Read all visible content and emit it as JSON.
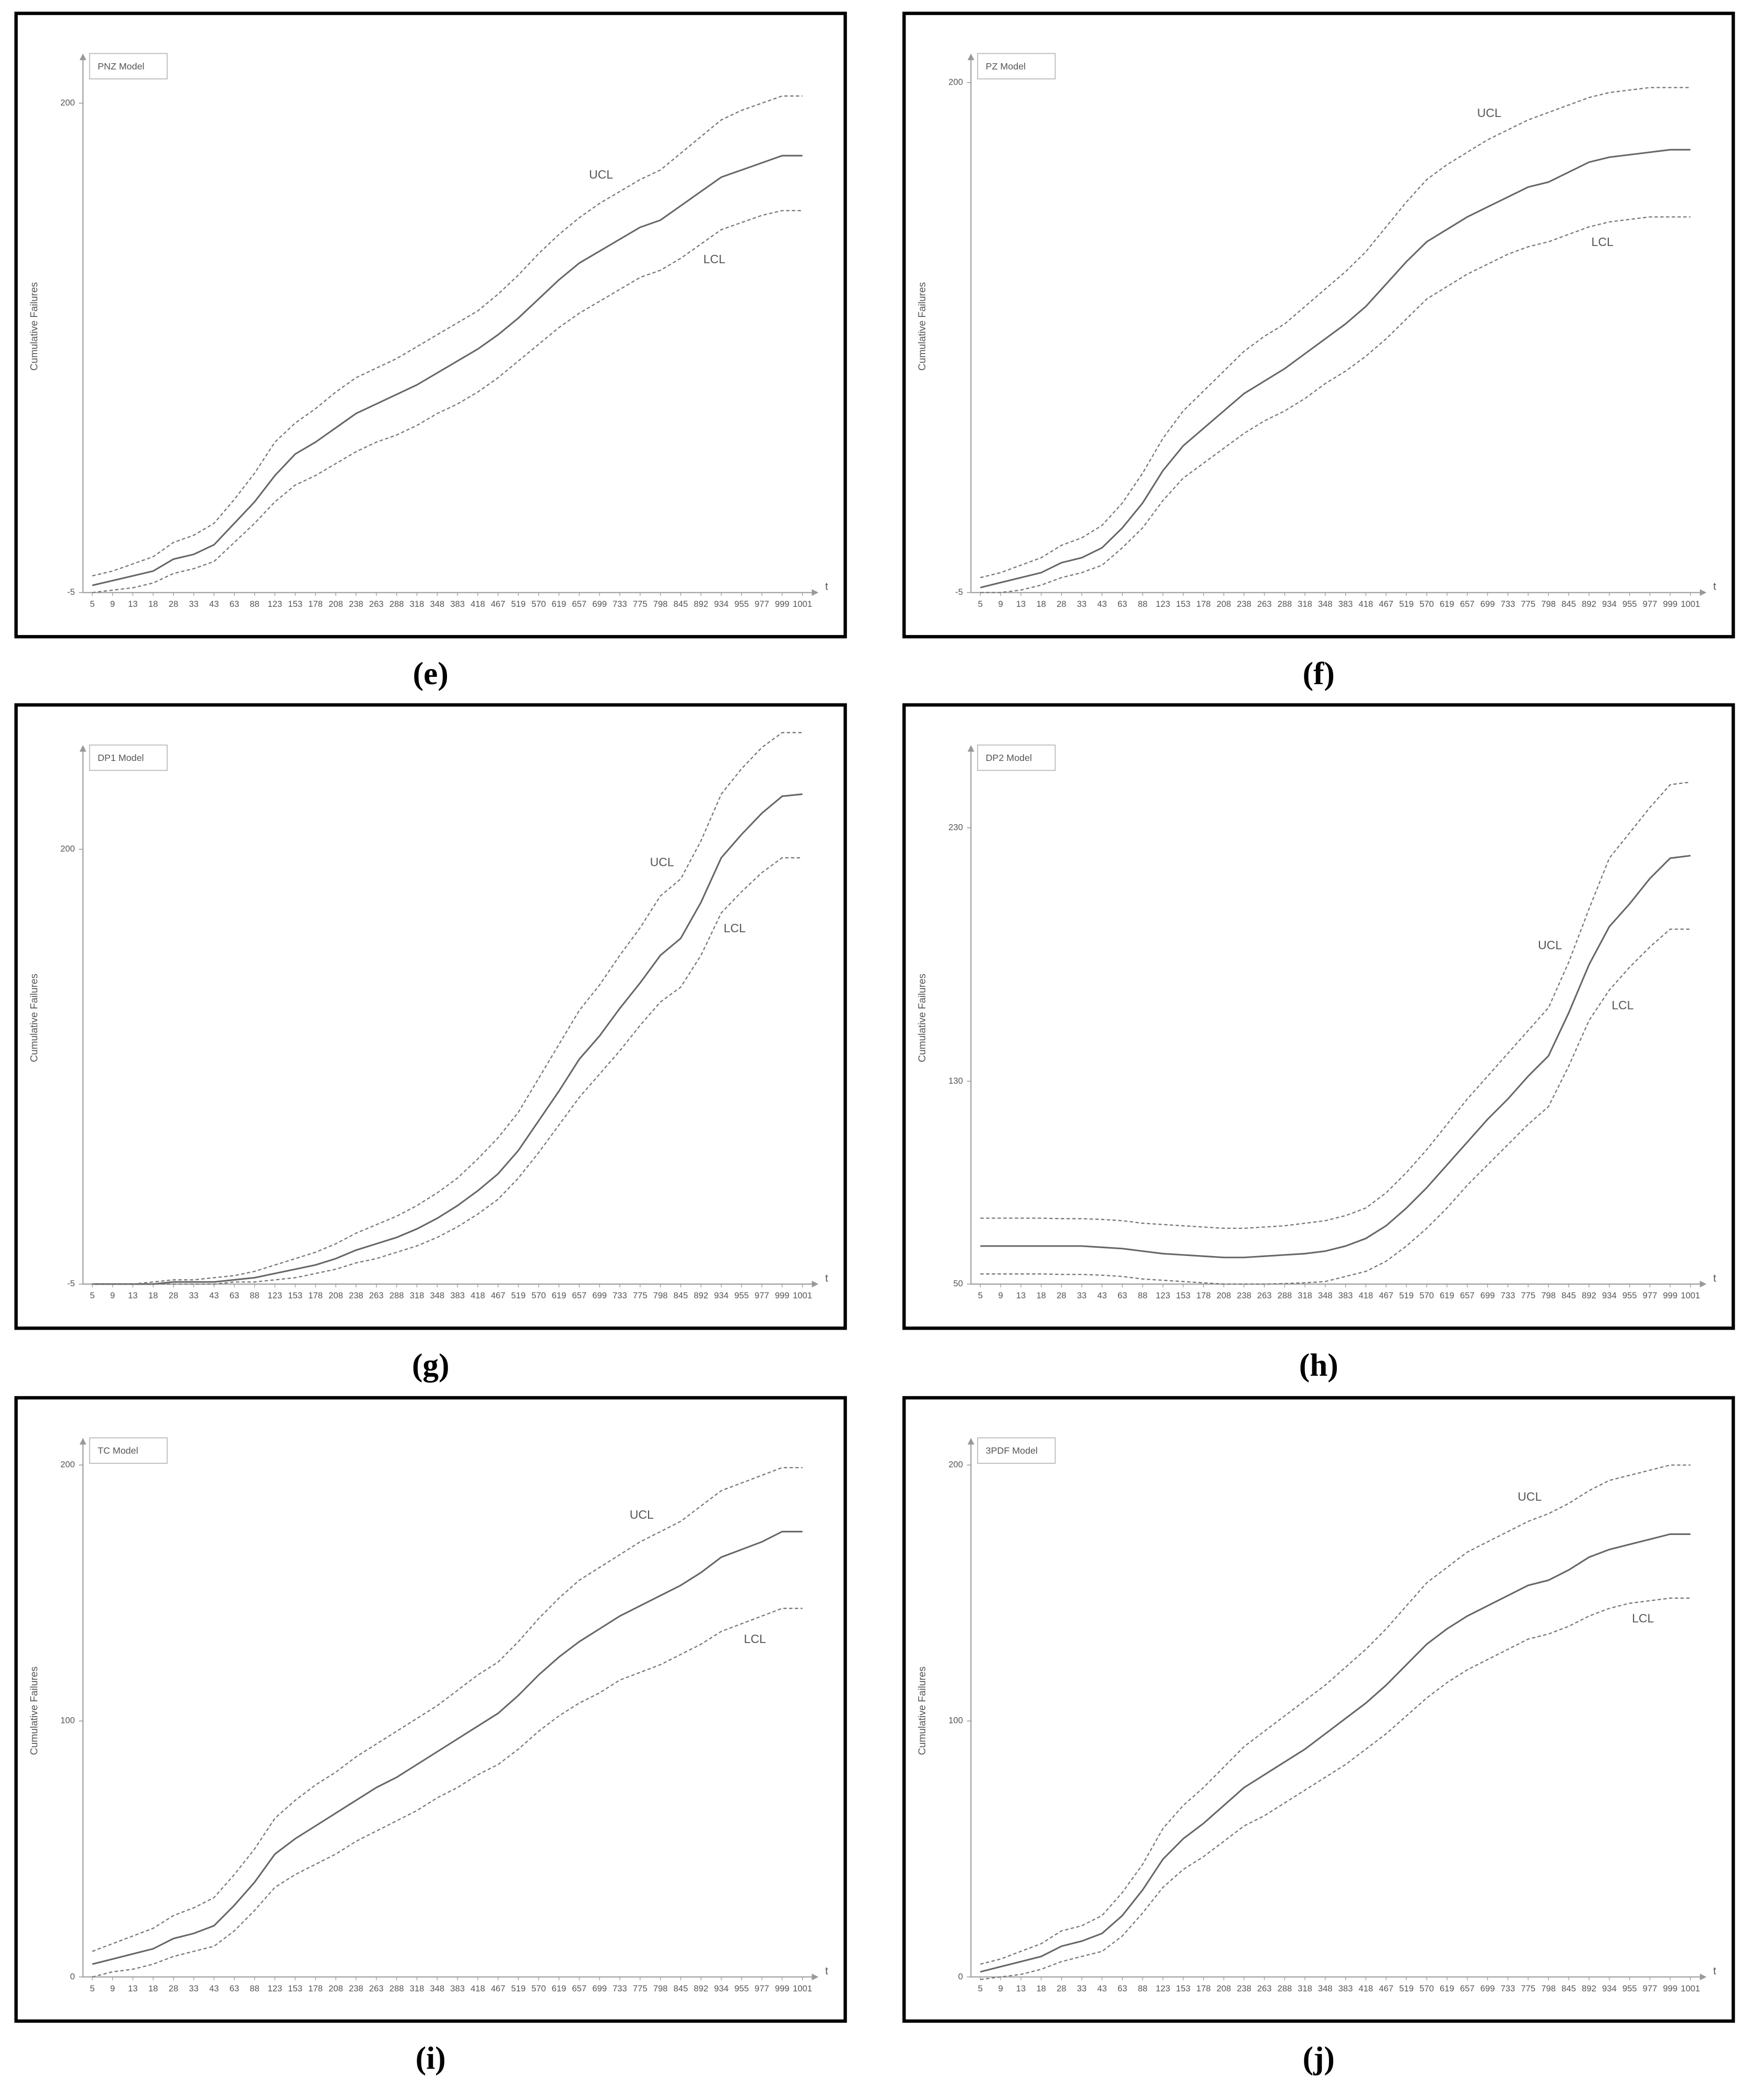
{
  "chart_data": [
    {
      "type": "line",
      "panel": "(e)",
      "legend_title": "PNZ Model",
      "ylabel": "Cumulative Failures",
      "xlabel": "t",
      "categories": [
        5,
        9,
        13,
        18,
        28,
        33,
        43,
        63,
        88,
        123,
        153,
        178,
        208,
        238,
        263,
        288,
        318,
        348,
        383,
        418,
        467,
        519,
        570,
        619,
        657,
        699,
        733,
        775,
        798,
        845,
        892,
        934,
        955,
        977,
        999,
        1001
      ],
      "ylim": [
        -5,
        218
      ],
      "yticks": [
        -5,
        200
      ],
      "series": [
        {
          "color": "#666666",
          "style": "solid",
          "values": [
            -2,
            0,
            2,
            4,
            9,
            11,
            15,
            24,
            33,
            44,
            53,
            58,
            64,
            70,
            74,
            78,
            82,
            87,
            92,
            97,
            103,
            110,
            118,
            126,
            133,
            138,
            143,
            148,
            151,
            157,
            163,
            169,
            172,
            175,
            178,
            178
          ]
        },
        {
          "name": "UCL",
          "color": "#777777",
          "style": "dashed",
          "values": [
            2,
            4,
            7,
            10,
            16,
            19,
            24,
            34,
            45,
            58,
            66,
            72,
            79,
            85,
            89,
            93,
            98,
            103,
            108,
            113,
            120,
            128,
            137,
            145,
            152,
            158,
            163,
            168,
            172,
            179,
            186,
            193,
            197,
            200,
            203,
            203
          ]
        },
        {
          "name": "LCL",
          "color": "#777777",
          "style": "dashed",
          "values": [
            -5,
            -4,
            -3,
            -1,
            3,
            5,
            8,
            16,
            24,
            33,
            40,
            44,
            49,
            54,
            58,
            61,
            65,
            70,
            74,
            79,
            85,
            92,
            99,
            106,
            112,
            117,
            122,
            127,
            130,
            135,
            141,
            147,
            150,
            153,
            155,
            155
          ]
        }
      ]
    },
    {
      "type": "line",
      "panel": "(f)",
      "legend_title": "PZ Model",
      "ylabel": "Cumulative Failures",
      "xlabel": "t",
      "categories": [
        5,
        9,
        13,
        18,
        28,
        33,
        43,
        63,
        88,
        123,
        153,
        178,
        208,
        238,
        263,
        288,
        318,
        348,
        383,
        418,
        467,
        519,
        570,
        619,
        657,
        699,
        733,
        775,
        798,
        845,
        892,
        934,
        955,
        977,
        999,
        1001
      ],
      "ylim": [
        -5,
        209
      ],
      "yticks": [
        -5,
        200
      ],
      "series": [
        {
          "color": "#666666",
          "style": "solid",
          "values": [
            -3,
            -1,
            1,
            3,
            7,
            9,
            13,
            21,
            31,
            44,
            54,
            61,
            68,
            75,
            80,
            85,
            91,
            97,
            103,
            110,
            119,
            128,
            136,
            141,
            146,
            150,
            154,
            158,
            160,
            164,
            168,
            170,
            171,
            172,
            173,
            173
          ]
        },
        {
          "name": "UCL",
          "color": "#777777",
          "style": "dashed",
          "values": [
            1,
            3,
            6,
            9,
            14,
            17,
            22,
            31,
            43,
            57,
            68,
            76,
            84,
            92,
            98,
            103,
            110,
            117,
            124,
            132,
            142,
            152,
            161,
            167,
            172,
            177,
            181,
            185,
            188,
            191,
            194,
            196,
            197,
            198,
            198,
            198
          ]
        },
        {
          "name": "LCL",
          "color": "#777777",
          "style": "dashed",
          "values": [
            -5,
            -5,
            -4,
            -2,
            1,
            3,
            6,
            13,
            21,
            32,
            41,
            47,
            53,
            59,
            64,
            68,
            73,
            79,
            84,
            90,
            97,
            105,
            113,
            118,
            123,
            127,
            131,
            134,
            136,
            139,
            142,
            144,
            145,
            146,
            146,
            146
          ]
        }
      ]
    },
    {
      "type": "line",
      "panel": "(g)",
      "legend_title": "DP1 Model",
      "ylabel": "Cumulative Failures",
      "xlabel": "t",
      "categories": [
        5,
        9,
        13,
        18,
        28,
        33,
        43,
        63,
        88,
        123,
        153,
        178,
        208,
        238,
        263,
        288,
        318,
        348,
        383,
        418,
        467,
        519,
        570,
        619,
        657,
        699,
        733,
        775,
        798,
        845,
        892,
        934,
        955,
        977,
        999,
        1001
      ],
      "ylim": [
        -5,
        246
      ],
      "yticks": [
        -5,
        200
      ],
      "series": [
        {
          "color": "#666666",
          "style": "solid",
          "values": [
            -5,
            -5,
            -5,
            -5,
            -4,
            -4,
            -4,
            -3,
            -2,
            0,
            2,
            4,
            7,
            11,
            14,
            17,
            21,
            26,
            32,
            39,
            47,
            58,
            72,
            86,
            101,
            112,
            125,
            137,
            150,
            158,
            175,
            196,
            207,
            217,
            225,
            226
          ]
        },
        {
          "name": "UCL",
          "color": "#777777",
          "style": "dashed",
          "values": [
            -5,
            -5,
            -5,
            -4,
            -3,
            -3,
            -2,
            -1,
            1,
            4,
            7,
            10,
            14,
            19,
            23,
            27,
            32,
            38,
            45,
            54,
            64,
            76,
            92,
            108,
            124,
            136,
            150,
            163,
            178,
            186,
            204,
            226,
            238,
            248,
            255,
            255
          ]
        },
        {
          "name": "LCL",
          "color": "#777777",
          "style": "dashed",
          "values": [
            -5,
            -5,
            -5,
            -5,
            -5,
            -5,
            -5,
            -4,
            -4,
            -3,
            -2,
            0,
            2,
            5,
            7,
            10,
            13,
            17,
            22,
            28,
            35,
            45,
            57,
            70,
            83,
            94,
            105,
            117,
            128,
            135,
            150,
            170,
            180,
            189,
            196,
            196
          ]
        }
      ]
    },
    {
      "type": "line",
      "panel": "(h)",
      "legend_title": "DP2 Model",
      "ylabel": "Cumulative Failures",
      "xlabel": "t",
      "categories": [
        5,
        9,
        13,
        18,
        28,
        33,
        43,
        63,
        88,
        123,
        153,
        178,
        208,
        238,
        263,
        288,
        318,
        348,
        383,
        418,
        467,
        519,
        570,
        619,
        657,
        699,
        733,
        775,
        798,
        845,
        892,
        934,
        955,
        977,
        999,
        1001
      ],
      "ylim": [
        50,
        260
      ],
      "yticks": [
        50,
        130,
        230
      ],
      "series": [
        {
          "color": "#666666",
          "style": "solid",
          "values": [
            65,
            65,
            65,
            65,
            65,
            65,
            64.5,
            64,
            63,
            62,
            61.5,
            61,
            60.5,
            60.5,
            61,
            61.5,
            62,
            63,
            65,
            68,
            73,
            80,
            88,
            97,
            106,
            115,
            123,
            132,
            140,
            157,
            176,
            191,
            200,
            210,
            218,
            219
          ]
        },
        {
          "name": "UCL",
          "color": "#777777",
          "style": "dashed",
          "values": [
            76,
            76,
            76,
            76,
            75.8,
            75.8,
            75.5,
            75,
            74,
            73.5,
            73,
            72.5,
            72,
            72,
            72.5,
            73,
            74,
            75,
            77,
            80,
            86,
            94,
            103,
            113,
            123,
            132,
            141,
            150,
            159,
            177,
            198,
            218,
            228,
            238,
            247,
            248
          ]
        },
        {
          "name": "LCL",
          "color": "#777777",
          "style": "dashed",
          "values": [
            54,
            54,
            54,
            54,
            53.8,
            53.8,
            53.5,
            53,
            52,
            51.5,
            51,
            50.5,
            50,
            50,
            50,
            50.2,
            50.5,
            51,
            53,
            55,
            59,
            65,
            72,
            80,
            89,
            97,
            105,
            113,
            120,
            136,
            154,
            166,
            175,
            183,
            190,
            190
          ]
        }
      ]
    },
    {
      "type": "line",
      "panel": "(i)",
      "legend_title": "TC Model",
      "ylabel": "Cumulative Failures",
      "xlabel": "t",
      "categories": [
        5,
        9,
        13,
        18,
        28,
        33,
        43,
        63,
        88,
        123,
        153,
        178,
        208,
        238,
        263,
        288,
        318,
        348,
        383,
        418,
        467,
        519,
        570,
        619,
        657,
        699,
        733,
        775,
        798,
        845,
        892,
        934,
        955,
        977,
        999,
        1001
      ],
      "ylim": [
        0,
        208
      ],
      "yticks": [
        0,
        100,
        200
      ],
      "series": [
        {
          "color": "#666666",
          "style": "solid",
          "values": [
            5,
            7,
            9,
            11,
            15,
            17,
            20,
            28,
            37,
            48,
            54,
            59,
            64,
            69,
            74,
            78,
            83,
            88,
            93,
            98,
            103,
            110,
            118,
            125,
            131,
            136,
            141,
            145,
            149,
            153,
            158,
            164,
            167,
            170,
            174,
            174
          ]
        },
        {
          "name": "UCL",
          "color": "#777777",
          "style": "dashed",
          "values": [
            10,
            13,
            16,
            19,
            24,
            27,
            31,
            40,
            50,
            62,
            69,
            75,
            80,
            86,
            91,
            96,
            101,
            106,
            112,
            118,
            123,
            131,
            140,
            148,
            155,
            160,
            165,
            170,
            174,
            178,
            184,
            190,
            193,
            196,
            199,
            199
          ]
        },
        {
          "name": "LCL",
          "color": "#777777",
          "style": "dashed",
          "values": [
            0,
            2,
            3,
            5,
            8,
            10,
            12,
            18,
            26,
            35,
            40,
            44,
            48,
            53,
            57,
            61,
            65,
            70,
            74,
            79,
            83,
            89,
            96,
            102,
            107,
            111,
            116,
            119,
            122,
            126,
            130,
            135,
            138,
            141,
            144,
            144
          ]
        }
      ]
    },
    {
      "type": "line",
      "panel": "(j)",
      "legend_title": "3PDF Model",
      "ylabel": "Cumulative Failures",
      "xlabel": "t",
      "categories": [
        5,
        9,
        13,
        18,
        28,
        33,
        43,
        63,
        88,
        123,
        153,
        178,
        208,
        238,
        263,
        288,
        318,
        348,
        383,
        418,
        467,
        519,
        570,
        619,
        657,
        699,
        733,
        775,
        798,
        845,
        892,
        934,
        955,
        977,
        999,
        1001
      ],
      "ylim": [
        0,
        208
      ],
      "yticks": [
        0,
        100,
        200
      ],
      "series": [
        {
          "color": "#666666",
          "style": "solid",
          "values": [
            2,
            4,
            6,
            8,
            12,
            14,
            17,
            24,
            34,
            46,
            54,
            60,
            67,
            74,
            79,
            84,
            89,
            95,
            101,
            107,
            114,
            122,
            130,
            136,
            141,
            145,
            149,
            153,
            155,
            159,
            164,
            167,
            169,
            171,
            173,
            173
          ]
        },
        {
          "name": "UCL",
          "color": "#777777",
          "style": "dashed",
          "values": [
            5,
            7,
            10,
            13,
            18,
            20,
            24,
            33,
            44,
            58,
            67,
            74,
            82,
            90,
            96,
            102,
            108,
            114,
            121,
            128,
            136,
            145,
            154,
            160,
            166,
            170,
            174,
            178,
            181,
            185,
            190,
            194,
            196,
            198,
            200,
            200
          ]
        },
        {
          "name": "LCL",
          "color": "#777777",
          "style": "dashed",
          "values": [
            -1,
            0,
            1,
            3,
            6,
            8,
            10,
            16,
            25,
            35,
            42,
            47,
            53,
            59,
            63,
            68,
            73,
            78,
            83,
            89,
            95,
            102,
            109,
            115,
            120,
            124,
            128,
            132,
            134,
            137,
            141,
            144,
            146,
            147,
            148,
            148
          ]
        }
      ]
    }
  ]
}
